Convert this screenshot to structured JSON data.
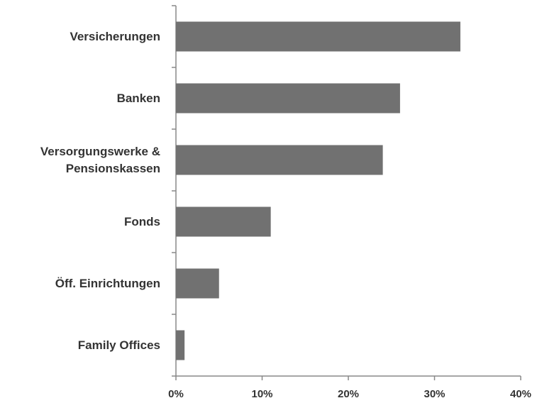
{
  "chart_data": {
    "type": "bar",
    "orientation": "horizontal",
    "categories": [
      "Versicherungen",
      "Banken",
      "Versorgungswerke & Pensionskassen",
      "Fonds",
      "Öff. Einrichtungen",
      "Family Offices"
    ],
    "values": [
      33,
      26,
      24,
      11,
      5,
      1
    ],
    "color": "#717171",
    "xlim": [
      0,
      40
    ],
    "xticks": [
      {
        "value": 0,
        "label": "0%"
      },
      {
        "value": 10,
        "label": "10%"
      },
      {
        "value": 20,
        "label": "20%"
      },
      {
        "value": 30,
        "label": "30%"
      },
      {
        "value": 40,
        "label": "40%"
      }
    ],
    "grid": false
  }
}
